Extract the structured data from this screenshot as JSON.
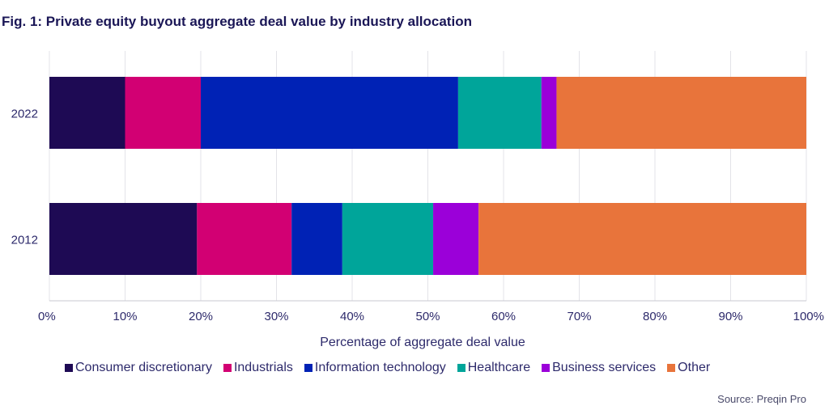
{
  "chart_data": {
    "type": "bar",
    "orientation": "horizontal",
    "stacked": true,
    "title": "Fig. 1: Private equity buyout aggregate deal value by industry allocation",
    "xlabel": "Percentage of aggregate deal value",
    "ylabel": "",
    "xlim": [
      0,
      100
    ],
    "x_ticks": [
      "0%",
      "10%",
      "20%",
      "30%",
      "40%",
      "50%",
      "60%",
      "70%",
      "80%",
      "90%",
      "100%"
    ],
    "categories": [
      "2022",
      "2012"
    ],
    "series": [
      {
        "name": "Consumer discretionary",
        "color": "#1e0a54",
        "values": [
          10,
          19.5
        ]
      },
      {
        "name": "Industrials",
        "color": "#d20073",
        "values": [
          10,
          12.5
        ]
      },
      {
        "name": "Information technology",
        "color": "#0022b5",
        "values": [
          34,
          6.7
        ]
      },
      {
        "name": "Healthcare",
        "color": "#00a59a",
        "values": [
          11,
          12
        ]
      },
      {
        "name": "Business services",
        "color": "#9b00d9",
        "values": [
          2,
          6
        ]
      },
      {
        "name": "Other",
        "color": "#e8743b",
        "values": [
          33,
          43.3
        ]
      }
    ],
    "grid": true,
    "legend_position": "bottom"
  },
  "source": "Source: Preqin Pro"
}
